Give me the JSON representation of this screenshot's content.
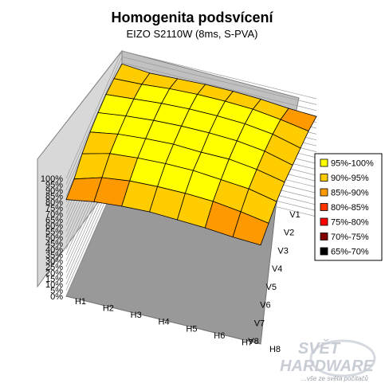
{
  "chart_data": {
    "type": "surface",
    "title": "Homogenita podsvícení",
    "subtitle": "EIZO S2110W (8ms, S-PVA)",
    "x_categories": [
      "H1",
      "H2",
      "H3",
      "H4",
      "H5",
      "H6",
      "H7",
      "H8"
    ],
    "y_categories": [
      "V1",
      "V2",
      "V3",
      "V4",
      "V5",
      "V6",
      "V7",
      "V8"
    ],
    "z_ticks": [
      "0%",
      "5%",
      "10%",
      "15%",
      "20%",
      "25%",
      "30%",
      "35%",
      "40%",
      "45%",
      "50%",
      "55%",
      "60%",
      "65%",
      "70%",
      "75%",
      "80%",
      "85%",
      "90%",
      "95%",
      "100%"
    ],
    "zlim": [
      0,
      100
    ],
    "legend": [
      {
        "label": "95%-100%",
        "color": "#ffff00"
      },
      {
        "label": "90%-95%",
        "color": "#ffcc00"
      },
      {
        "label": "85%-90%",
        "color": "#ff9900"
      },
      {
        "label": "80%-85%",
        "color": "#ff3300"
      },
      {
        "label": "75%-80%",
        "color": "#ff0000"
      },
      {
        "label": "70%-75%",
        "color": "#800000"
      },
      {
        "label": "65%-70%",
        "color": "#000000"
      }
    ],
    "values": [
      [
        89,
        92,
        94,
        94,
        93,
        90,
        84,
        82
      ],
      [
        87,
        93,
        96,
        97,
        97,
        96,
        91,
        86
      ],
      [
        88,
        95,
        98,
        99,
        99,
        98,
        94,
        88
      ],
      [
        89,
        96,
        99,
        100,
        100,
        99,
        95,
        89
      ],
      [
        89,
        96,
        99,
        100,
        99,
        99,
        95,
        88
      ],
      [
        88,
        95,
        98,
        99,
        99,
        97,
        94,
        87
      ],
      [
        86,
        92,
        95,
        96,
        96,
        95,
        91,
        85
      ],
      [
        85,
        88,
        89,
        90,
        91,
        90,
        87,
        84
      ]
    ]
  },
  "watermark": {
    "brand_line1": "SVĚT",
    "brand_line2": "HARDWARE",
    "tagline": "...vše ze světa počítačů"
  }
}
